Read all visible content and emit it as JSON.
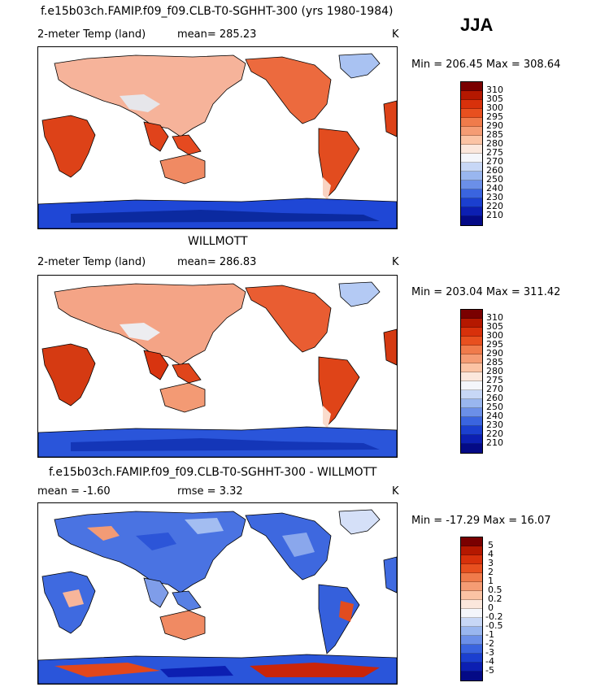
{
  "season": "JJA",
  "panels": [
    {
      "title": "f.e15b03ch.FAMIP.f09_f09.CLB-T0-SGHHT-300 (yrs 1980-1984)",
      "left": "2-meter Temp (land)",
      "mid": "mean= 285.23",
      "units": "K",
      "minmax": "Min = 206.45 Max = 308.64",
      "levels": [
        "310",
        "305",
        "300",
        "295",
        "290",
        "285",
        "280",
        "275",
        "270",
        "260",
        "250",
        "240",
        "230",
        "220",
        "210"
      ]
    },
    {
      "title": "WILLMOTT",
      "left": "2-meter Temp (land)",
      "mid": "mean= 286.83",
      "units": "K",
      "minmax": "Min = 203.04 Max = 311.42",
      "levels": [
        "310",
        "305",
        "300",
        "295",
        "290",
        "285",
        "280",
        "275",
        "270",
        "260",
        "250",
        "240",
        "230",
        "220",
        "210"
      ]
    },
    {
      "title": "f.e15b03ch.FAMIP.f09_f09.CLB-T0-SGHHT-300 - WILLMOTT",
      "left": "mean =   -1.60",
      "mid": "rmse =    3.32",
      "units": "K",
      "minmax": "Min = -17.29 Max =  16.07",
      "levels": [
        "5",
        "4",
        "3",
        "2",
        "1",
        "0.5",
        "0.2",
        "0",
        "-0.2",
        "-0.5",
        "-1",
        "-2",
        "-3",
        "-4",
        "-5"
      ]
    }
  ],
  "colorbar_colors": [
    "#7a0000",
    "#b51800",
    "#d8310b",
    "#e8501f",
    "#f07b4b",
    "#f59c74",
    "#fbc3a4",
    "#fbe7dc",
    "#f4f6fb",
    "#c7d7f6",
    "#99b6ef",
    "#6b8fe8",
    "#3a64df",
    "#1b3fcf",
    "#0c1fb2",
    "#040a86"
  ]
}
